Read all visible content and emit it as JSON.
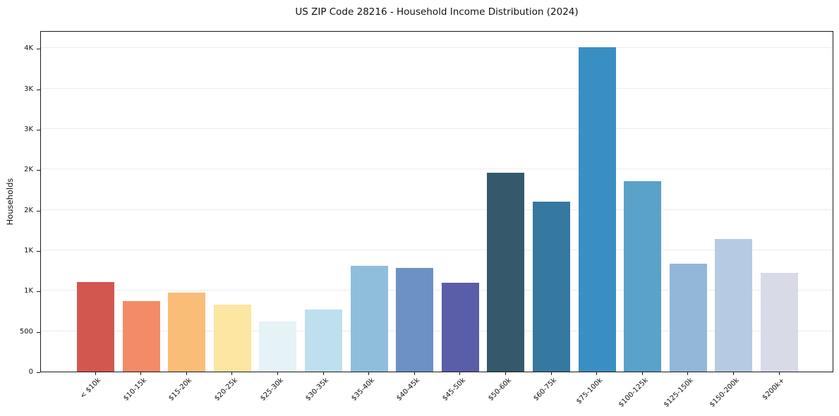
{
  "chart_data": {
    "type": "bar",
    "title": "US ZIP Code 28216 - Household Income Distribution (2024)",
    "xlabel": "",
    "ylabel": "Households",
    "categories": [
      "< $10k",
      "$10-15k",
      "$15-20k",
      "$20-25k",
      "$25-30k",
      "$30-35k",
      "$35-40k",
      "$40-45k",
      "$45-50k",
      "$50-60k",
      "$60-75k",
      "$75-100k",
      "$100-125k",
      "$125-150k",
      "$150-200k",
      "$200k+"
    ],
    "values": [
      1110,
      870,
      975,
      830,
      620,
      770,
      1310,
      1280,
      1100,
      2460,
      2100,
      4010,
      2350,
      1330,
      1640,
      1220
    ],
    "bar_colors": [
      "#d2574f",
      "#f48b68",
      "#f9bd77",
      "#fde5a2",
      "#e5f2f6",
      "#bedfee",
      "#8fbedd",
      "#6c92c3",
      "#5a5da7",
      "#35596b",
      "#3579a0",
      "#3a8fc2",
      "#5aa2c8",
      "#92b7d9",
      "#b7cae3",
      "#d9dae8"
    ],
    "y_ticks": [
      {
        "value": 0,
        "label": "0"
      },
      {
        "value": 500,
        "label": "500"
      },
      {
        "value": 1000,
        "label": "1K"
      },
      {
        "value": 1500,
        "label": "1K"
      },
      {
        "value": 2000,
        "label": "2K"
      },
      {
        "value": 2500,
        "label": "2K"
      },
      {
        "value": 3000,
        "label": "3K"
      },
      {
        "value": 3500,
        "label": "3K"
      },
      {
        "value": 4000,
        "label": "4K"
      }
    ],
    "ylim": [
      0,
      4220
    ],
    "grid": "horizontal",
    "legend": "none"
  }
}
